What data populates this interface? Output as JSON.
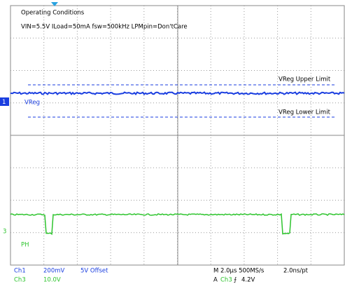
{
  "annotations": {
    "conditions_title": "Operating Conditions",
    "conditions": "VIN=5.5V ILoad=50mA fsw=500kHz LPMpin=Don'tCare",
    "upper_limit": "VReg Upper Limit",
    "lower_limit": "VReg Lower Limit"
  },
  "channels": {
    "ch1_marker": "1",
    "ch1_label": "VReg",
    "ch3_marker": "3",
    "ch3_label": "PH"
  },
  "status": {
    "ch1": "Ch1",
    "ch1_scale": "200mV",
    "ch1_offset": "5V Offset",
    "ch3": "Ch3",
    "ch3_scale": "10.0V",
    "timebase": "M 2.0µs 500MS/s",
    "resolution": "2.0ns/pt",
    "trigger": "A",
    "trigger_source": "Ch3",
    "trigger_slope": "⨍",
    "trigger_level": "4.2V"
  }
}
